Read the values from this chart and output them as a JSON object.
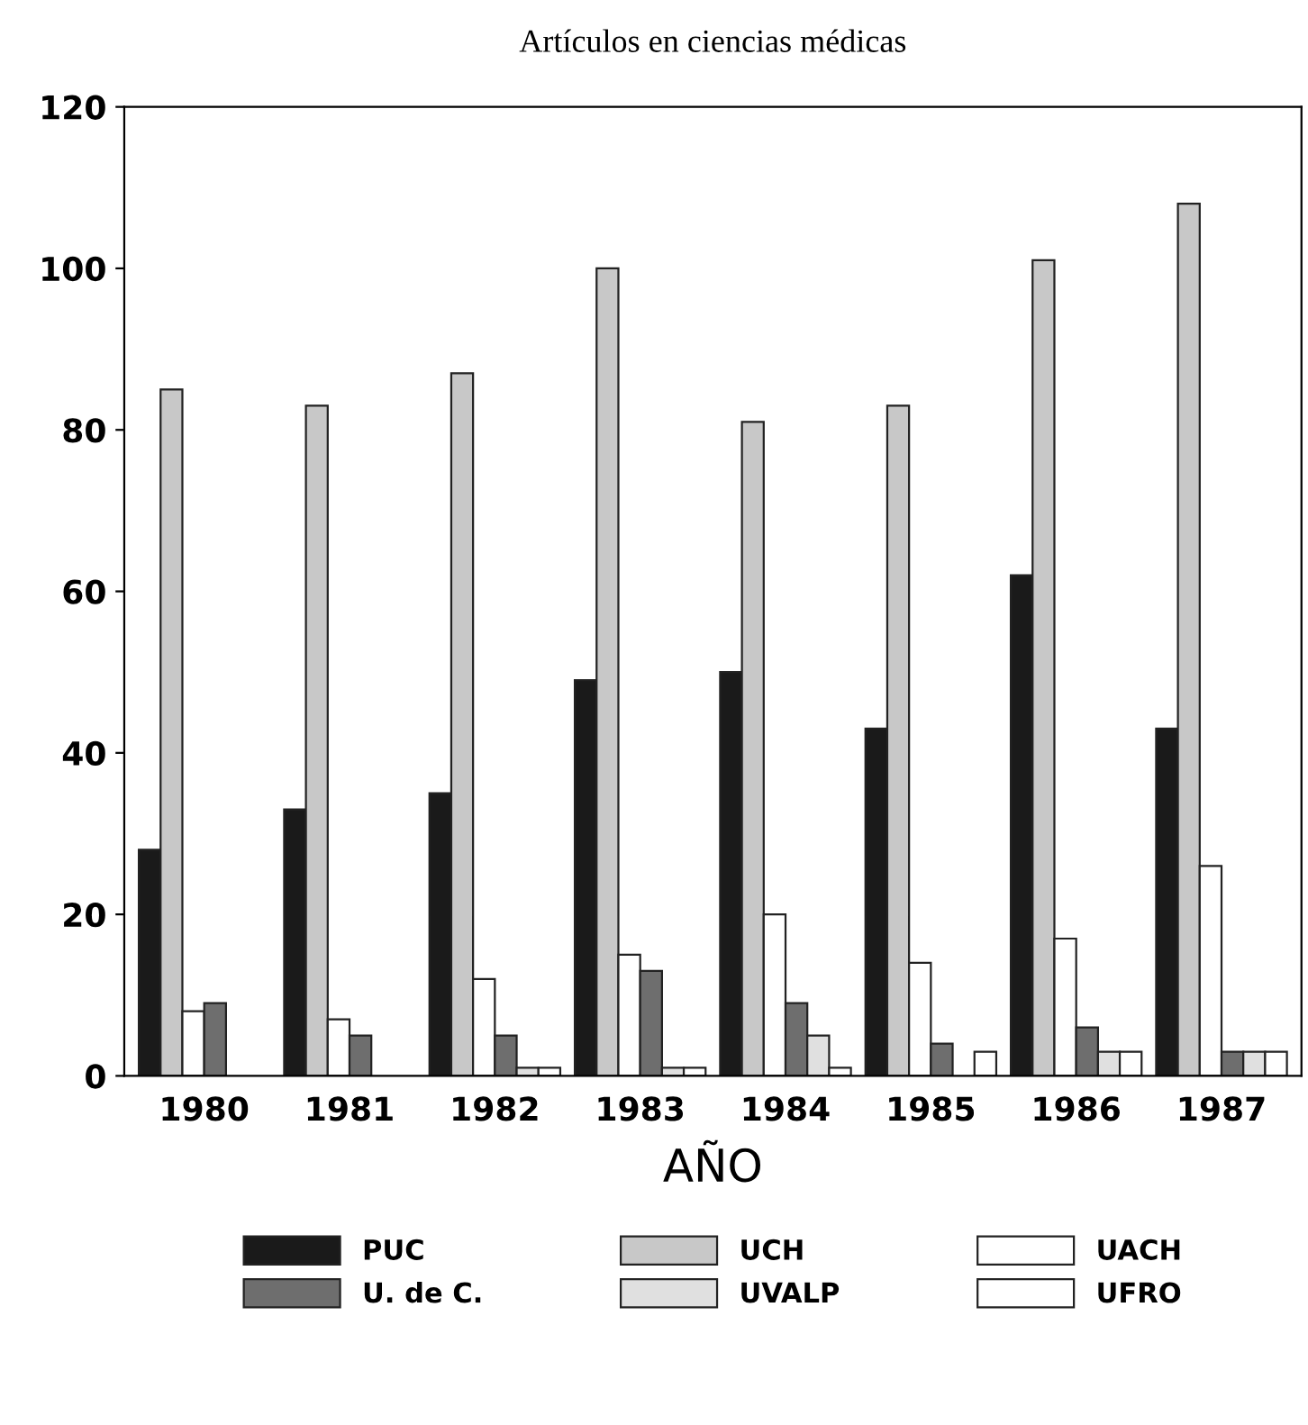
{
  "chart_data": {
    "type": "bar",
    "title": "Artículos en ciencias médicas",
    "xlabel": "AÑO",
    "categories": [
      "1980",
      "1981",
      "1982",
      "1983",
      "1984",
      "1985",
      "1986",
      "1987"
    ],
    "series": [
      {
        "name": "PUC",
        "color": "#1a1a1a",
        "values": [
          28,
          33,
          35,
          49,
          50,
          43,
          62,
          43
        ]
      },
      {
        "name": "UCH",
        "color": "#c8c8c8",
        "values": [
          85,
          83,
          87,
          100,
          81,
          83,
          101,
          108
        ]
      },
      {
        "name": "UACH",
        "color": "#ffffff",
        "values": [
          8,
          7,
          12,
          15,
          20,
          14,
          17,
          26
        ]
      },
      {
        "name": "U. de C.",
        "color": "#6e6e6e",
        "values": [
          9,
          5,
          5,
          13,
          9,
          4,
          6,
          3
        ]
      },
      {
        "name": "UVALP",
        "color": "#e0e0e0",
        "values": [
          0,
          0,
          1,
          1,
          5,
          0,
          3,
          3
        ]
      },
      {
        "name": "UFRO",
        "color": "#ffffff",
        "values": [
          0,
          0,
          1,
          1,
          1,
          3,
          3,
          3
        ]
      }
    ],
    "ylim": [
      0,
      120
    ],
    "yticks": [
      0,
      20,
      40,
      60,
      80,
      100,
      120
    ],
    "grid": false,
    "legend": "bottom"
  }
}
